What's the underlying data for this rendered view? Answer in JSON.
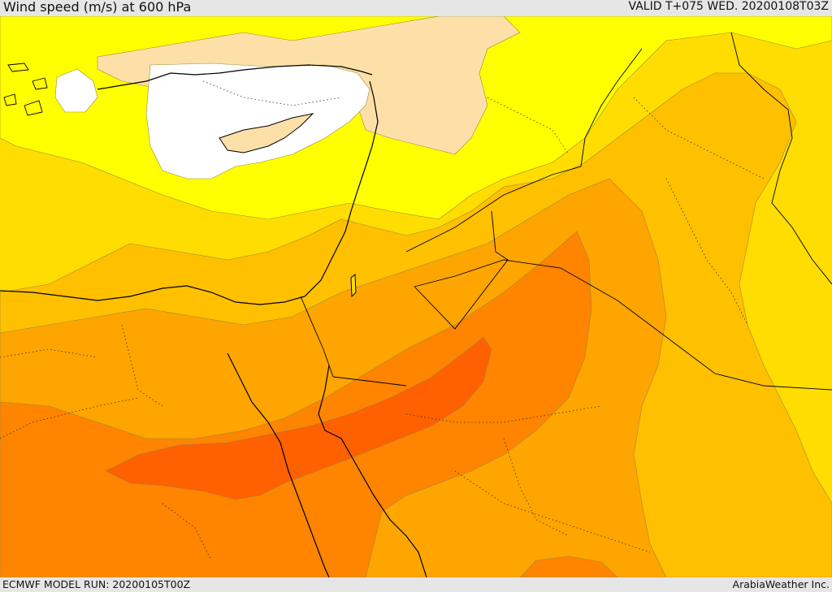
{
  "header": {
    "title": "Wind speed (m/s) at 600 hPa",
    "valid_time": "VALID T+075 WED. 20200108T03Z"
  },
  "footer": {
    "model_run": "ECMWF MODEL RUN: 20200105T00Z",
    "credit": "ArabiaWeather Inc."
  },
  "colors": {
    "calm_white": "#ffffff",
    "light_tan": "#fde0a8",
    "yellow": "#ffff00",
    "gold": "#ffdd00",
    "light_orange": "#ffc000",
    "orange": "#ffa500",
    "dark_orange": "#ff8400",
    "deep_orange": "#ff6000",
    "coastline": "#000000",
    "borders": "#000000"
  }
}
